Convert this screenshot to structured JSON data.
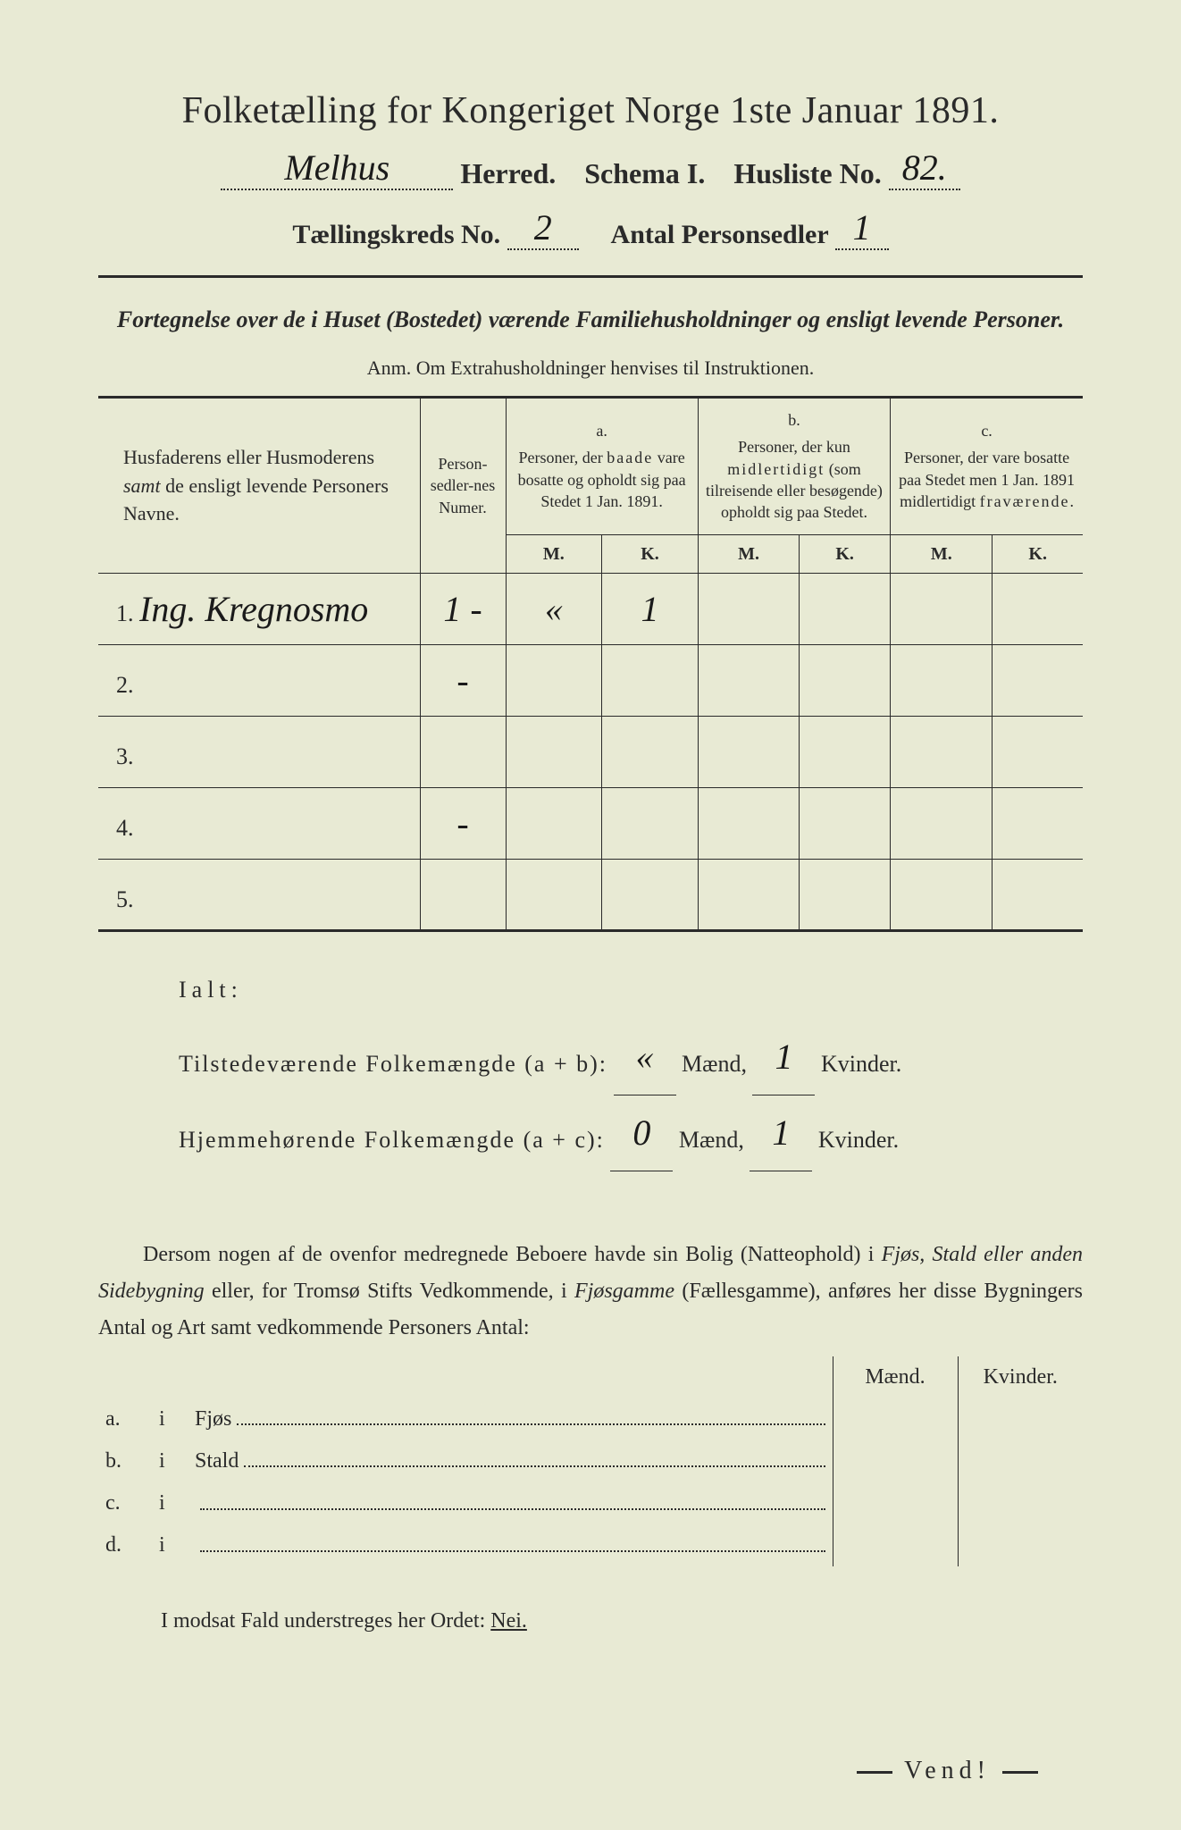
{
  "colors": {
    "paper": "#e8ead4",
    "ink": "#2a2a2a",
    "background": "#3a3a3a"
  },
  "title": "Folketælling for Kongeriget Norge 1ste Januar 1891.",
  "herred_value": "Melhus",
  "herred_label": "Herred.",
  "schema_label": "Schema I.",
  "husliste_label": "Husliste No.",
  "husliste_value": "82.",
  "kreds_label": "Tællingskreds No.",
  "kreds_value": "2",
  "antal_label": "Antal Personsedler",
  "antal_value": "1",
  "fortegnelse": "Fortegnelse over de i Huset (Bostedet) værende Familiehusholdninger og ensligt levende Personer.",
  "anm": "Anm.   Om Extrahusholdninger henvises til Instruktionen.",
  "hdr_names": "Husfaderens eller Husmoderens samt de ensligt levende Personers Navne.",
  "hdr_numer": "Person-sedler-nes Numer.",
  "hdr_a_letter": "a.",
  "hdr_a": "Personer, der baade vare bosatte og opholdt sig paa Stedet 1 Jan. 1891.",
  "hdr_b_letter": "b.",
  "hdr_b": "Personer, der kun midlertidigt (som tilreisende eller besøgende) opholdt sig paa Stedet.",
  "hdr_c_letter": "c.",
  "hdr_c": "Personer, der vare bosatte paa Stedet men 1 Jan. 1891 midlertidigt fraværende.",
  "hdr_m": "M.",
  "hdr_k": "K.",
  "rows": [
    {
      "n": "1.",
      "name": "Ing. Kregnosmo",
      "numer": "1 -",
      "a_m": "«",
      "a_k": "1",
      "b_m": "",
      "b_k": "",
      "c_m": "",
      "c_k": ""
    },
    {
      "n": "2.",
      "name": "",
      "numer": "-",
      "a_m": "",
      "a_k": "",
      "b_m": "",
      "b_k": "",
      "c_m": "",
      "c_k": ""
    },
    {
      "n": "3.",
      "name": "",
      "numer": "",
      "a_m": "",
      "a_k": "",
      "b_m": "",
      "b_k": "",
      "c_m": "",
      "c_k": ""
    },
    {
      "n": "4.",
      "name": "",
      "numer": "-",
      "a_m": "",
      "a_k": "",
      "b_m": "",
      "b_k": "",
      "c_m": "",
      "c_k": ""
    },
    {
      "n": "5.",
      "name": "",
      "numer": "",
      "a_m": "",
      "a_k": "",
      "b_m": "",
      "b_k": "",
      "c_m": "",
      "c_k": ""
    }
  ],
  "ialt_label": "Ialt:",
  "tilstede_line": "Tilstedeværende Folkemængde (a + b):",
  "hjemme_line": "Hjemmehørende Folkemængde (a + c):",
  "maend": "Mænd,",
  "kvinder": "Kvinder.",
  "tilstede_m": "«",
  "tilstede_k": "1",
  "hjemme_m": "0",
  "hjemme_k": "1",
  "dersom": "Dersom nogen af de ovenfor medregnede Beboere havde sin Bolig (Natteophold) i Fjøs, Stald eller anden Sidebygning eller, for Tromsø Stifts Vedkommende, i Fjøsgamme (Fællesgamme), anføres her disse Bygningers Antal og Art samt vedkommende Personers Antal:",
  "build_hdr_m": "Mænd.",
  "build_hdr_k": "Kvinder.",
  "build_rows": [
    {
      "l": "a.",
      "i": "i",
      "name": "Fjøs"
    },
    {
      "l": "b.",
      "i": "i",
      "name": "Stald"
    },
    {
      "l": "c.",
      "i": "i",
      "name": ""
    },
    {
      "l": "d.",
      "i": "i",
      "name": ""
    }
  ],
  "modsat": "I modsat Fald understreges her Ordet: Nei.",
  "nei": "Nei.",
  "vend": "Vend!"
}
